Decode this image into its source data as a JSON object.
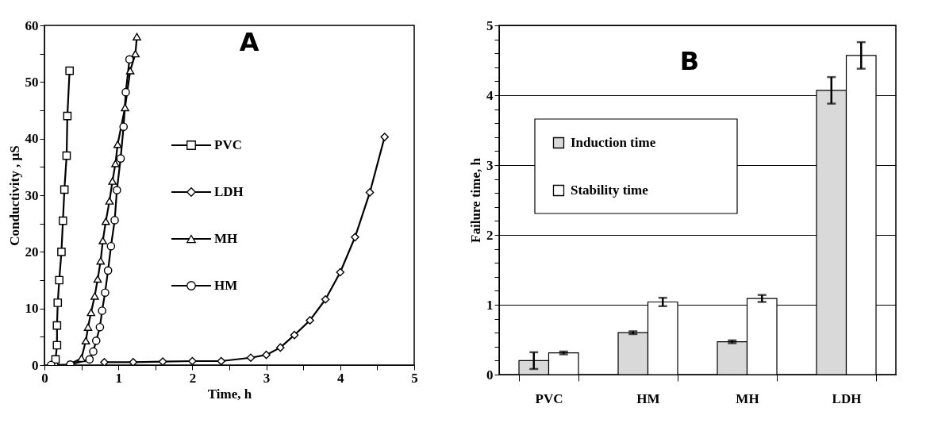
{
  "chart_data": [
    {
      "type": "line",
      "xlabel": "Time, h",
      "ylabel": "Conductivity  , µS",
      "annotations": [
        "A"
      ],
      "legend": "center",
      "grid": false,
      "xlim": [
        0,
        5
      ],
      "ylim": [
        0,
        60
      ],
      "xticks": [
        0,
        {
          "value": 0.5,
          "label": null
        },
        1,
        {
          "value": 1.5,
          "label": null
        },
        2,
        {
          "value": 2.5,
          "label": null
        },
        3,
        {
          "value": 3.5,
          "label": null
        },
        4,
        {
          "value": 4.5,
          "label": null
        },
        5
      ],
      "yticks": [
        0,
        {
          "value": 5,
          "label": null
        },
        10,
        {
          "value": 15,
          "label": null
        },
        20,
        {
          "value": 25,
          "label": null
        },
        30,
        {
          "value": 35,
          "label": null
        },
        40,
        {
          "value": 45,
          "label": null
        },
        50,
        {
          "value": 55,
          "label": null
        },
        60
      ],
      "series": [
        {
          "name": "PVC",
          "color": "#000000",
          "marker": "square",
          "x": [
            0.13,
            0.15,
            0.17,
            0.17,
            0.18,
            0.2,
            0.23,
            0.25,
            0.27,
            0.3,
            0.31,
            0.34
          ],
          "values": [
            0,
            1,
            3.5,
            7,
            11,
            15,
            20,
            25.5,
            31,
            37,
            44,
            52
          ]
        },
        {
          "name": "LDH",
          "color": "#000000",
          "marker": "diamond",
          "x": [
            0.81,
            1.2,
            1.6,
            2.0,
            2.39,
            2.79,
            3.0,
            3.19,
            3.38,
            3.59,
            3.8,
            4.0,
            4.2,
            4.4,
            4.6
          ],
          "values": [
            0.5,
            0.5,
            0.6,
            0.7,
            0.7,
            1.3,
            1.8,
            3.1,
            5.3,
            7.9,
            11.6,
            16.4,
            22.6,
            30.5,
            40.3
          ]
        },
        {
          "name": "MH",
          "color": "#000000",
          "marker": "triangle",
          "x": [
            0.32,
            0.5,
            0.56,
            0.59,
            0.63,
            0.68,
            0.72,
            0.76,
            0.79,
            0.83,
            0.88,
            0.92,
            0.96,
            0.99,
            1.09,
            1.16,
            1.23,
            1.25
          ],
          "values": [
            0,
            1.2,
            4.3,
            6.7,
            9.3,
            12.2,
            15.2,
            18.4,
            22,
            25.4,
            29,
            32.5,
            35.6,
            39,
            45.5,
            52,
            55,
            58
          ]
        },
        {
          "name": "HM",
          "color": "#000000",
          "marker": "circle",
          "x": [
            0.09,
            0.35,
            0.61,
            0.66,
            0.7,
            0.75,
            0.78,
            0.82,
            0.86,
            0.9,
            0.95,
            0.98,
            1.03,
            1.07,
            1.1,
            1.15
          ],
          "values": [
            0,
            0.1,
            1,
            2.4,
            4.3,
            6.7,
            9.6,
            12.8,
            16.7,
            21,
            25.6,
            30.9,
            36.5,
            42.1,
            48.2,
            54
          ]
        }
      ]
    },
    {
      "type": "bar",
      "ylabel": "Failure time, h",
      "annotations": [
        "B"
      ],
      "legend": "left",
      "grid": "y",
      "categories": [
        "PVC",
        "HM",
        "MH",
        "LDH"
      ],
      "ylim": [
        0,
        5
      ],
      "yticks": [
        0,
        {
          "value": 0.2,
          "label": null
        },
        {
          "value": 0.4,
          "label": null
        },
        {
          "value": 0.6,
          "label": null
        },
        {
          "value": 0.8,
          "label": null
        },
        1,
        {
          "value": 1.2,
          "label": null
        },
        {
          "value": 1.4,
          "label": null
        },
        {
          "value": 1.6,
          "label": null
        },
        {
          "value": 1.8,
          "label": null
        },
        2,
        {
          "value": 2.2,
          "label": null
        },
        {
          "value": 2.4,
          "label": null
        },
        {
          "value": 2.6,
          "label": null
        },
        {
          "value": 2.8,
          "label": null
        },
        3,
        {
          "value": 3.2,
          "label": null
        },
        {
          "value": 3.4,
          "label": null
        },
        {
          "value": 3.6,
          "label": null
        },
        {
          "value": 3.8,
          "label": null
        },
        4,
        {
          "value": 4.2,
          "label": null
        },
        {
          "value": 4.4,
          "label": null
        },
        {
          "value": 4.6,
          "label": null
        },
        {
          "value": 4.8,
          "label": null
        },
        5
      ],
      "series": [
        {
          "name": "Induction time",
          "color": "#d9d9d9",
          "values": [
            0.2,
            0.6,
            0.47,
            4.07
          ],
          "errors": [
            0.12,
            0.02,
            0.02,
            0.19
          ]
        },
        {
          "name": "Stability time",
          "color": "#ffffff",
          "values": [
            0.31,
            1.04,
            1.09,
            4.57
          ],
          "errors": [
            0.02,
            0.06,
            0.05,
            0.19
          ]
        }
      ]
    }
  ]
}
